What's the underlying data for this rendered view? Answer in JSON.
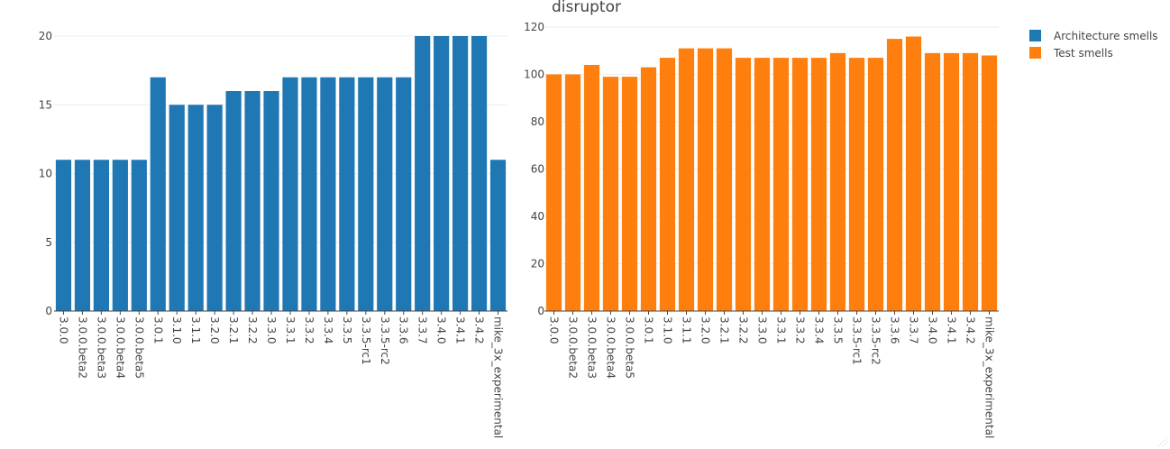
{
  "chart_data": {
    "title": "disruptor",
    "legend": {
      "placement": "top-right",
      "entries": [
        {
          "label": "Architecture smells",
          "color": "#1f77b4"
        },
        {
          "label": "Test smells",
          "color": "#ff7f0e"
        }
      ]
    },
    "grid": true,
    "panels": [
      {
        "type": "bar",
        "series_name": "Architecture smells",
        "color": "#1f77b4",
        "categories": [
          "3.0.0",
          "3.0.0.beta2",
          "3.0.0.beta3",
          "3.0.0.beta4",
          "3.0.0.beta5",
          "3.0.1",
          "3.1.0",
          "3.1.1",
          "3.2.0",
          "3.2.1",
          "3.2.2",
          "3.3.0",
          "3.3.1",
          "3.3.2",
          "3.3.4",
          "3.3.5",
          "3.3.5-rc1",
          "3.3.5-rc2",
          "3.3.6",
          "3.3.7",
          "3.4.0",
          "3.4.1",
          "3.4.2",
          "mike_3x_experimental"
        ],
        "values": [
          11,
          11,
          11,
          11,
          11,
          17,
          15,
          15,
          15,
          16,
          16,
          16,
          17,
          17,
          17,
          17,
          17,
          17,
          17,
          20,
          20,
          20,
          20,
          11
        ],
        "ylim": [
          0,
          20
        ],
        "yticks": [
          0,
          5,
          10,
          15,
          20
        ]
      },
      {
        "type": "bar",
        "series_name": "Test smells",
        "color": "#ff7f0e",
        "categories": [
          "3.0.0",
          "3.0.0.beta2",
          "3.0.0.beta3",
          "3.0.0.beta4",
          "3.0.0.beta5",
          "3.0.1",
          "3.1.0",
          "3.1.1",
          "3.2.0",
          "3.2.1",
          "3.2.2",
          "3.3.0",
          "3.3.1",
          "3.3.2",
          "3.3.4",
          "3.3.5",
          "3.3.5-rc1",
          "3.3.5-rc2",
          "3.3.6",
          "3.3.7",
          "3.4.0",
          "3.4.1",
          "3.4.2",
          "mike_3x_experimental"
        ],
        "values": [
          100,
          100,
          104,
          99,
          99,
          103,
          107,
          111,
          111,
          111,
          107,
          107,
          107,
          107,
          107,
          109,
          107,
          107,
          115,
          116,
          109,
          109,
          109,
          108
        ],
        "ylim": [
          0,
          120
        ],
        "yticks": [
          0,
          20,
          40,
          60,
          80,
          100,
          120
        ]
      }
    ]
  }
}
